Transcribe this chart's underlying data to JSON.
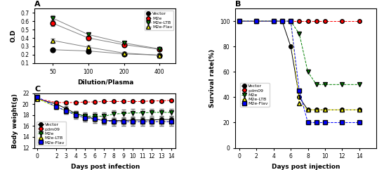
{
  "panel_A": {
    "title": "A",
    "xlabel": "Dilution/Plasma",
    "ylabel": "O.D",
    "xvals": [
      50,
      100,
      200,
      400
    ],
    "series": {
      "Vector": {
        "color": "black",
        "marker": "o",
        "values": [
          0.26,
          0.245,
          0.21,
          0.195
        ],
        "yerr": [
          0.01,
          0.01,
          0.01,
          0.01
        ],
        "linestyle": "-"
      },
      "M2e": {
        "color": "red",
        "marker": "o",
        "values": [
          0.575,
          0.4,
          0.32,
          0.265
        ],
        "yerr": [
          0.03,
          0.025,
          0.02,
          0.015
        ],
        "linestyle": "-"
      },
      "M2e-LTB": {
        "color": "green",
        "marker": "v",
        "values": [
          0.635,
          0.44,
          0.34,
          0.27
        ],
        "yerr": [
          0.03,
          0.02,
          0.02,
          0.015
        ],
        "linestyle": "-"
      },
      "M2e-Flav": {
        "color": "yellow",
        "marker": "^",
        "values": [
          0.37,
          0.29,
          0.22,
          0.195
        ],
        "yerr": [
          0.02,
          0.015,
          0.01,
          0.01
        ],
        "linestyle": "-"
      }
    },
    "ylim": [
      0.1,
      0.75
    ],
    "yticks": [
      0.1,
      0.2,
      0.3,
      0.4,
      0.5,
      0.6,
      0.7
    ],
    "line_color": "gray"
  },
  "panel_B": {
    "title": "B",
    "xlabel": "Days post injection",
    "ylabel": "Survival rate(%)",
    "xvals": [
      0,
      2,
      4,
      5,
      6,
      7,
      8,
      9,
      10,
      12,
      14
    ],
    "series": {
      "Vector": {
        "color": "black",
        "marker": "o",
        "values": [
          100,
          100,
          100,
          100,
          80,
          40,
          30,
          30,
          30,
          30,
          30
        ],
        "linestyle": "-"
      },
      "pdm09": {
        "color": "red",
        "marker": "o",
        "values": [
          100,
          100,
          100,
          100,
          100,
          100,
          100,
          100,
          100,
          100,
          100
        ],
        "linestyle": "--"
      },
      "M2e": {
        "color": "green",
        "marker": "v",
        "values": [
          100,
          100,
          100,
          100,
          100,
          90,
          60,
          50,
          50,
          50,
          50
        ],
        "linestyle": "--"
      },
      "M2e-LTB": {
        "color": "yellow",
        "marker": "^",
        "values": [
          100,
          100,
          100,
          100,
          100,
          35,
          30,
          30,
          30,
          30,
          30
        ],
        "linestyle": "--"
      },
      "M2e-Flav": {
        "color": "blue",
        "marker": "s",
        "values": [
          100,
          100,
          100,
          100,
          100,
          45,
          20,
          20,
          20,
          20,
          20
        ],
        "linestyle": "--"
      }
    },
    "ylim": [
      0,
      110
    ],
    "yticks": [
      0,
      20,
      40,
      60,
      80,
      100
    ],
    "xlim": [
      -0.5,
      16
    ]
  },
  "panel_C": {
    "title": "C",
    "xlabel": "Days post infection",
    "ylabel": "Body weight(g)",
    "xvals": [
      0,
      2,
      3,
      4,
      5,
      6,
      7,
      8,
      9,
      10,
      11,
      12,
      13,
      14
    ],
    "series": {
      "Vector": {
        "color": "black",
        "marker": "o",
        "values": [
          21.0,
          20.0,
          19.2,
          18.3,
          17.8,
          17.3,
          17.0,
          17.0,
          17.0,
          17.1,
          17.1,
          17.1,
          17.2,
          17.2
        ],
        "yerr": [
          0.3,
          0.3,
          0.4,
          0.5,
          0.5,
          0.5,
          0.5,
          0.5,
          0.5,
          0.5,
          0.5,
          0.5,
          0.5,
          0.5
        ],
        "linestyle": "-"
      },
      "pdm09": {
        "color": "red",
        "marker": "o",
        "values": [
          21.0,
          20.3,
          20.3,
          20.3,
          20.4,
          20.4,
          20.5,
          20.5,
          20.5,
          20.5,
          20.5,
          20.6,
          20.6,
          20.7
        ],
        "yerr": [
          0.2,
          0.2,
          0.2,
          0.2,
          0.2,
          0.2,
          0.2,
          0.2,
          0.2,
          0.2,
          0.2,
          0.2,
          0.2,
          0.2
        ],
        "linestyle": "--"
      },
      "M2e": {
        "color": "green",
        "marker": "v",
        "values": [
          21.0,
          19.5,
          18.8,
          18.2,
          17.8,
          17.8,
          17.8,
          18.2,
          18.3,
          18.4,
          18.4,
          18.5,
          18.5,
          18.5
        ],
        "yerr": [
          0.3,
          0.4,
          0.5,
          0.6,
          0.7,
          0.7,
          0.7,
          0.7,
          0.7,
          0.7,
          0.7,
          0.7,
          0.7,
          0.7
        ],
        "linestyle": "--"
      },
      "M2e-LTB": {
        "color": "yellow",
        "marker": "^",
        "values": [
          21.0,
          19.5,
          18.8,
          18.0,
          17.5,
          17.3,
          17.0,
          16.8,
          16.8,
          16.8,
          16.8,
          16.8,
          16.8,
          16.8
        ],
        "yerr": [
          0.3,
          0.4,
          0.5,
          0.6,
          0.7,
          0.7,
          0.7,
          0.7,
          0.7,
          0.7,
          0.7,
          0.7,
          0.7,
          0.7
        ],
        "linestyle": "--"
      },
      "M2e-Flav": {
        "color": "blue",
        "marker": "s",
        "values": [
          21.3,
          19.5,
          18.8,
          18.0,
          17.5,
          17.3,
          17.0,
          16.8,
          16.8,
          16.8,
          16.8,
          16.8,
          16.8,
          16.8
        ],
        "yerr": [
          0.3,
          0.4,
          0.5,
          0.6,
          0.7,
          0.7,
          0.7,
          0.7,
          0.7,
          0.7,
          0.7,
          0.7,
          0.7,
          0.7
        ],
        "linestyle": "--"
      }
    },
    "ylim": [
      12,
      22
    ],
    "yticks": [
      12,
      14,
      16,
      18,
      20,
      22
    ],
    "xlim": [
      -0.3,
      14.5
    ]
  }
}
